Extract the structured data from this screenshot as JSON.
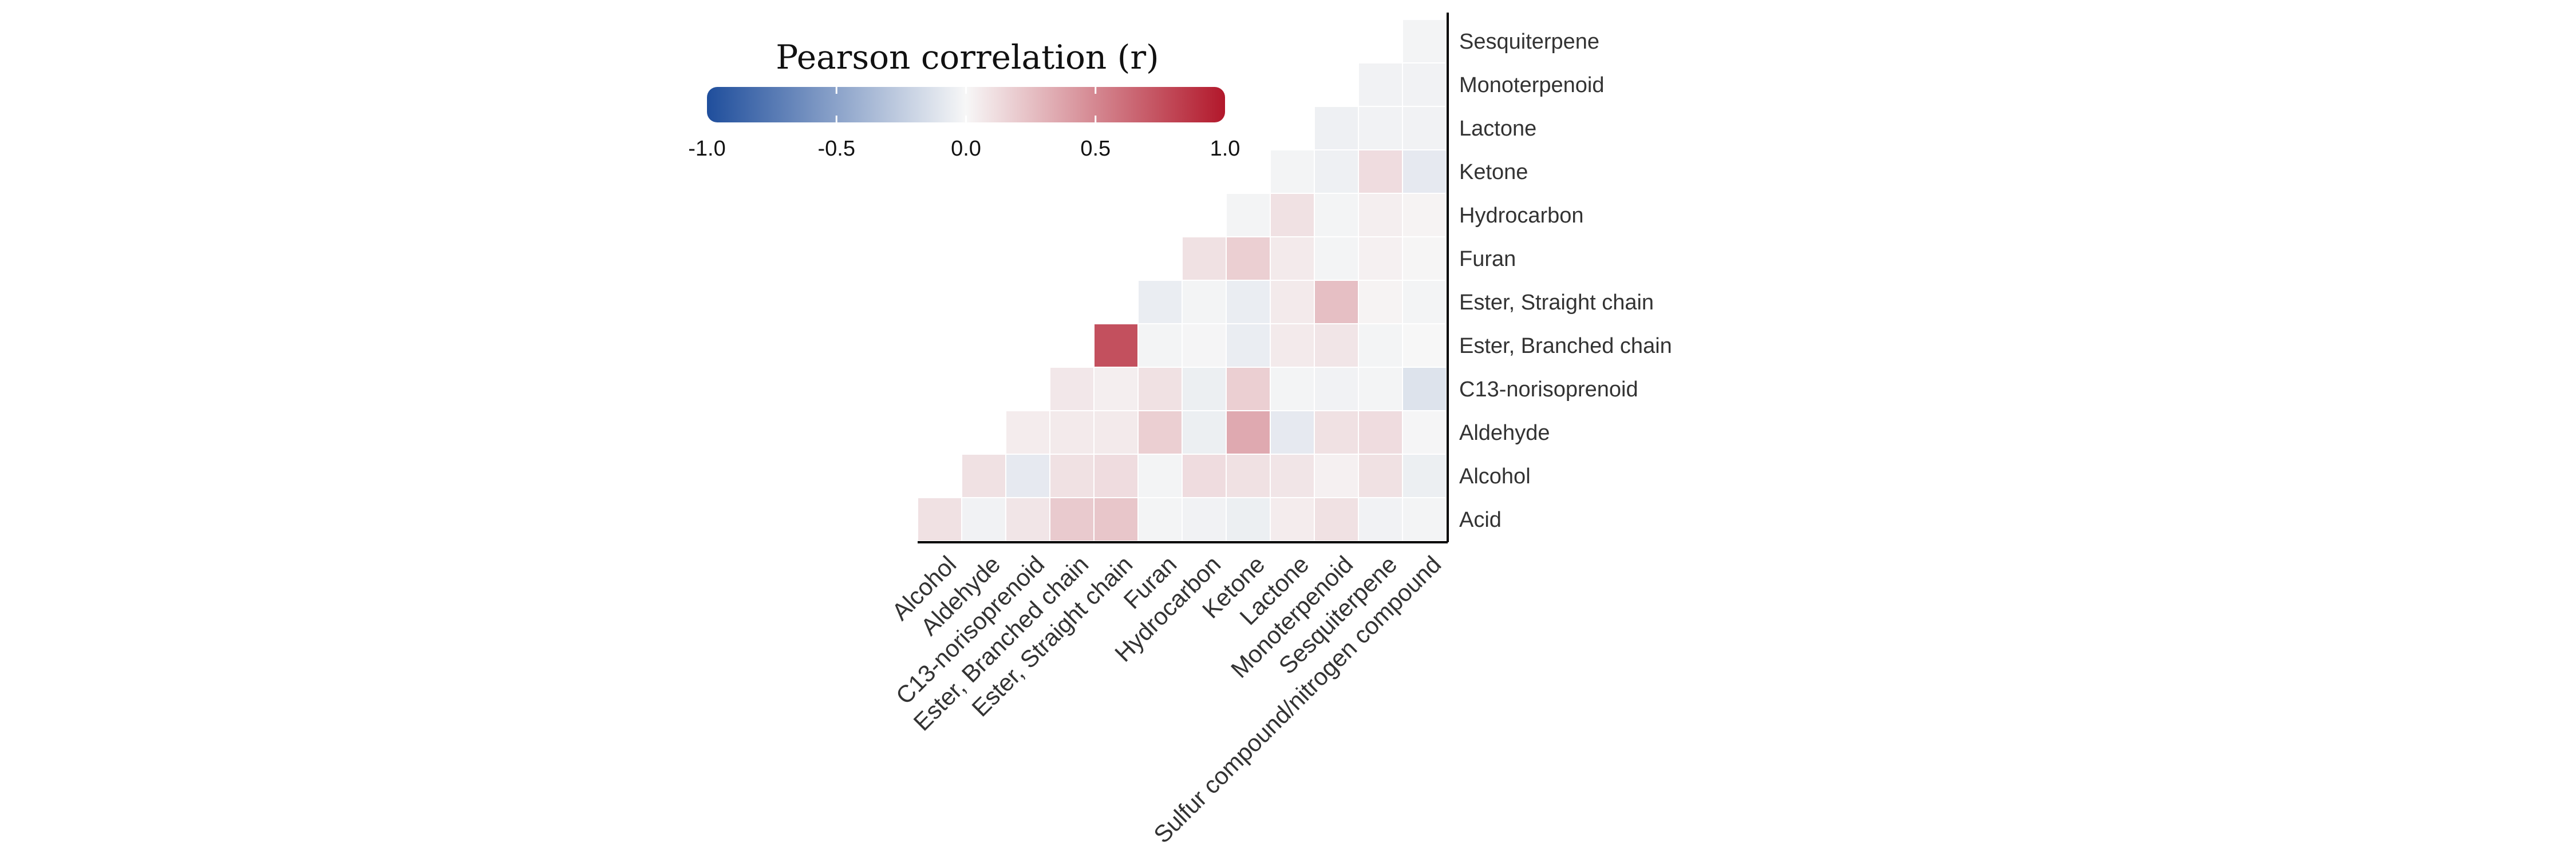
{
  "chart_data": {
    "type": "heatmap",
    "title": "",
    "xlabel": "",
    "ylabel": "",
    "legend": {
      "title": "Pearson correlation (r)",
      "placement": "top-left",
      "range": [
        -1.0,
        1.0
      ],
      "ticks": [
        "-1.0",
        "-0.5",
        "0.0",
        "0.5",
        "1.0"
      ],
      "colors": {
        "low": "#1f4e9c",
        "mid": "#f7f7f7",
        "high": "#b2182b"
      }
    },
    "grid": false,
    "x_categories": [
      "Alcohol",
      "Aldehyde",
      "C13-norisoprenoid",
      "Ester, Branched chain",
      "Ester, Straight chain",
      "Furan",
      "Hydrocarbon",
      "Ketone",
      "Lactone",
      "Monoterpenoid",
      "Sesquiterpene",
      "Sulfur compound/nitrogen compound"
    ],
    "y_categories": [
      "Acid",
      "Alcohol",
      "Aldehyde",
      "C13-norisoprenoid",
      "Ester, Branched chain",
      "Ester, Straight chain",
      "Furan",
      "Hydrocarbon",
      "Ketone",
      "Lactone",
      "Monoterpenoid",
      "Sesquiterpene"
    ],
    "values": [
      [
        0.1,
        -0.03,
        0.08,
        0.2,
        0.22,
        -0.02,
        -0.03,
        -0.05,
        0.05,
        0.1,
        -0.03,
        -0.02
      ],
      [
        null,
        0.1,
        -0.08,
        0.1,
        0.12,
        -0.02,
        0.12,
        0.1,
        0.08,
        0.03,
        0.1,
        -0.05
      ],
      [
        null,
        null,
        0.05,
        0.06,
        0.06,
        0.18,
        -0.05,
        0.35,
        -0.08,
        0.1,
        0.12,
        -0.01
      ],
      [
        null,
        null,
        null,
        0.07,
        0.04,
        0.1,
        -0.05,
        0.18,
        -0.02,
        -0.03,
        -0.02,
        -0.12
      ],
      [
        null,
        null,
        null,
        null,
        0.75,
        -0.02,
        -0.01,
        -0.06,
        0.06,
        0.08,
        -0.02,
        0.0
      ],
      [
        null,
        null,
        null,
        null,
        null,
        -0.06,
        -0.02,
        -0.06,
        0.06,
        0.25,
        0.02,
        -0.02
      ],
      [
        null,
        null,
        null,
        null,
        null,
        null,
        0.1,
        0.18,
        0.06,
        -0.02,
        0.03,
        0.01
      ],
      [
        null,
        null,
        null,
        null,
        null,
        null,
        null,
        -0.02,
        0.1,
        -0.02,
        0.04,
        0.02
      ],
      [
        null,
        null,
        null,
        null,
        null,
        null,
        null,
        null,
        -0.02,
        -0.04,
        0.12,
        -0.08
      ],
      [
        null,
        null,
        null,
        null,
        null,
        null,
        null,
        null,
        null,
        -0.04,
        -0.03,
        -0.03
      ],
      [
        null,
        null,
        null,
        null,
        null,
        null,
        null,
        null,
        null,
        null,
        -0.03,
        -0.03
      ],
      [
        null,
        null,
        null,
        null,
        null,
        null,
        null,
        null,
        null,
        null,
        null,
        -0.02
      ]
    ]
  }
}
